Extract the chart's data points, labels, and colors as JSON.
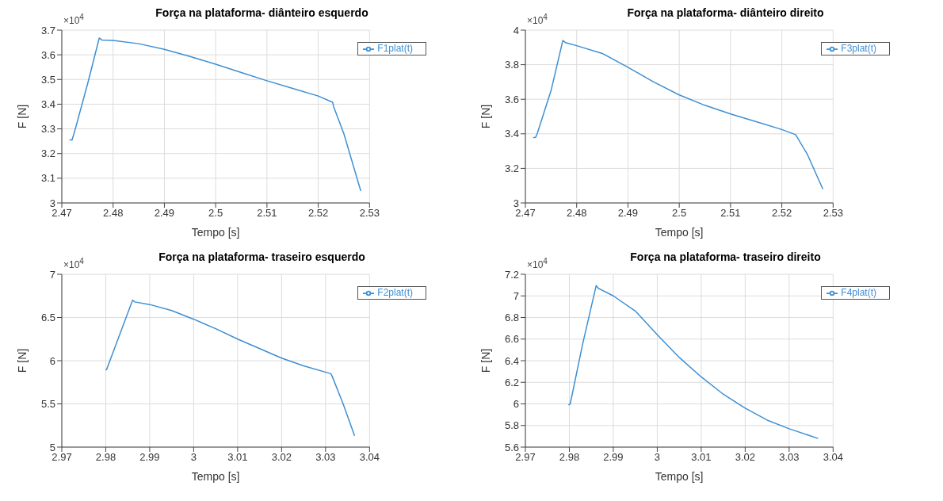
{
  "chart_data": [
    {
      "type": "line",
      "title": "Força na plataforma- diânteiro esquerdo",
      "xlabel": "Tempo [s]",
      "ylabel": "F [N]",
      "annotations": [
        "×10$^{4}$"
      ],
      "grid": true,
      "legend": "top right",
      "xlim": [
        2.47,
        2.53
      ],
      "xticks": [
        2.47,
        2.48,
        2.49,
        2.5,
        2.51,
        2.52,
        2.53
      ],
      "ylim": [
        3,
        3.7
      ],
      "yticks": [
        3,
        3.1,
        3.2,
        3.3,
        3.4,
        3.5,
        3.6,
        3.7
      ],
      "series": [
        {
          "name": "F1plat(t)",
          "color": "#3d8fd4",
          "x": [
            2.4715,
            2.472,
            2.4725,
            2.475,
            2.4773,
            2.4778,
            2.48,
            2.485,
            2.49,
            2.495,
            2.5,
            2.505,
            2.51,
            2.515,
            2.52,
            2.5228,
            2.523,
            2.525,
            2.5283
          ],
          "values": [
            3.255,
            3.255,
            3.29,
            3.48,
            3.668,
            3.66,
            3.658,
            3.645,
            3.622,
            3.593,
            3.562,
            3.528,
            3.495,
            3.464,
            3.433,
            3.408,
            3.39,
            3.28,
            3.048
          ]
        }
      ]
    },
    {
      "type": "line",
      "title": "Força na plataforma- diânteiro direito",
      "xlabel": "Tempo [s]",
      "ylabel": "F [N]",
      "annotations": [
        "×10$^{4}$"
      ],
      "grid": true,
      "legend": "top right",
      "xlim": [
        2.47,
        2.53
      ],
      "xticks": [
        2.47,
        2.48,
        2.49,
        2.5,
        2.51,
        2.52,
        2.53
      ],
      "ylim": [
        3,
        4
      ],
      "yticks": [
        3,
        3.2,
        3.4,
        3.6,
        3.8,
        4
      ],
      "series": [
        {
          "name": "F3plat(t)",
          "color": "#3d8fd4",
          "x": [
            2.4715,
            2.472,
            2.4723,
            2.475,
            2.4773,
            2.4778,
            2.48,
            2.485,
            2.49,
            2.495,
            2.5,
            2.505,
            2.51,
            2.515,
            2.52,
            2.5227,
            2.525,
            2.528
          ],
          "values": [
            3.378,
            3.38,
            3.4,
            3.65,
            3.94,
            3.928,
            3.91,
            3.865,
            3.785,
            3.7,
            3.625,
            3.565,
            3.515,
            3.47,
            3.425,
            3.395,
            3.28,
            3.08
          ]
        }
      ]
    },
    {
      "type": "line",
      "title": "Força na plataforma- traseiro esquerdo",
      "xlabel": "Tempo [s]",
      "ylabel": "F [N]",
      "annotations": [
        "×10$^{4}$"
      ],
      "grid": true,
      "legend": "top right",
      "xlim": [
        2.97,
        3.04
      ],
      "xticks": [
        2.97,
        2.98,
        2.99,
        3,
        3.01,
        3.02,
        3.03,
        3.04
      ],
      "ylim": [
        5,
        7
      ],
      "yticks": [
        5,
        5.5,
        6,
        6.5,
        7
      ],
      "series": [
        {
          "name": "F2plat(t)",
          "color": "#3d8fd4",
          "x": [
            2.98,
            2.9802,
            2.983,
            2.9861,
            2.9866,
            2.99,
            2.995,
            3.0,
            3.005,
            3.01,
            3.015,
            3.02,
            3.025,
            3.0312,
            3.0315,
            3.034,
            3.0366
          ],
          "values": [
            5.89,
            5.9,
            6.28,
            6.7,
            6.68,
            6.65,
            6.58,
            6.48,
            6.37,
            6.25,
            6.14,
            6.03,
            5.94,
            5.85,
            5.82,
            5.5,
            5.13
          ]
        }
      ]
    },
    {
      "type": "line",
      "title": "Força na plataforma- traseiro direito",
      "xlabel": "Tempo [s]",
      "ylabel": "F [N]",
      "annotations": [
        "×10$^{4}$"
      ],
      "grid": true,
      "legend": "top right",
      "xlim": [
        2.97,
        3.04
      ],
      "xticks": [
        2.97,
        2.98,
        2.99,
        3,
        3.01,
        3.02,
        3.03,
        3.04
      ],
      "ylim": [
        5.6,
        7.2
      ],
      "yticks": [
        5.6,
        5.8,
        6,
        6.2,
        6.4,
        6.6,
        6.8,
        7,
        7.2
      ],
      "series": [
        {
          "name": "F4plat(t)",
          "color": "#3d8fd4",
          "x": [
            2.9798,
            2.9802,
            2.983,
            2.9861,
            2.9866,
            2.99,
            2.995,
            3.0,
            3.005,
            3.01,
            3.015,
            3.02,
            3.025,
            3.03,
            3.0366
          ],
          "values": [
            5.99,
            6.0,
            6.55,
            7.095,
            7.07,
            7.0,
            6.86,
            6.64,
            6.43,
            6.25,
            6.09,
            5.96,
            5.85,
            5.77,
            5.68
          ]
        }
      ]
    }
  ]
}
